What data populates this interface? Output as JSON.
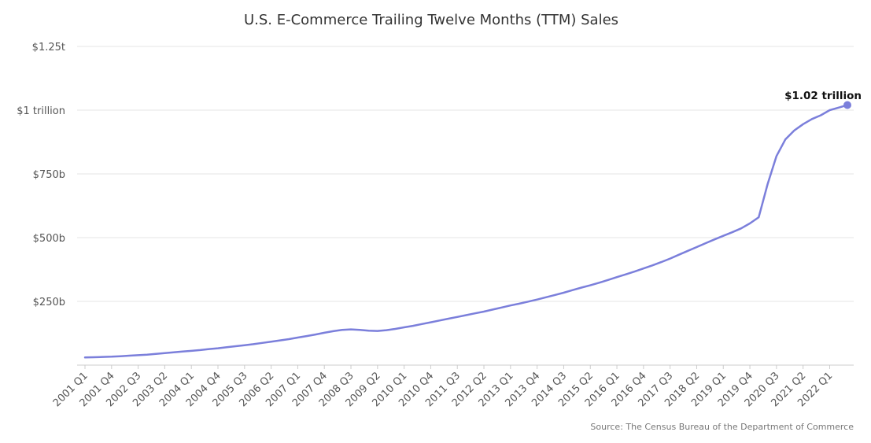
{
  "chart_data": {
    "type": "line",
    "title": "U.S. E-Commerce Trailing Twelve Months (TTM) Sales",
    "source": "Source: The Census Bureau of the Department of Commerce",
    "ylim": [
      0,
      1250
    ],
    "yunit": "billions USD",
    "y_ticks": [
      {
        "value": 250,
        "label": "$250b"
      },
      {
        "value": 500,
        "label": "$500b"
      },
      {
        "value": 750,
        "label": "$750b"
      },
      {
        "value": 1000,
        "label": "$1 trillion"
      },
      {
        "value": 1250,
        "label": "$1.25t"
      }
    ],
    "x_tick_labels": [
      "2001 Q1",
      "2001 Q4",
      "2002 Q3",
      "2003 Q2",
      "2004 Q1",
      "2004 Q4",
      "2005 Q3",
      "2006 Q2",
      "2007 Q1",
      "2007 Q4",
      "2008 Q3",
      "2009 Q2",
      "2010 Q1",
      "2010 Q4",
      "2011 Q3",
      "2012 Q2",
      "2013 Q1",
      "2013 Q4",
      "2014 Q3",
      "2015 Q2",
      "2016 Q1",
      "2016 Q4",
      "2017 Q3",
      "2018 Q2",
      "2019 Q1",
      "2019 Q4",
      "2020 Q3",
      "2021 Q2",
      "2022 Q1"
    ],
    "grid": true,
    "color": "#7b7fdb",
    "annotation": {
      "label": "$1.02 trillion",
      "value": 1020
    },
    "series": [
      {
        "x": [
          "2001 Q1",
          "2001 Q2",
          "2001 Q3",
          "2001 Q4",
          "2002 Q1",
          "2002 Q2",
          "2002 Q3",
          "2002 Q4",
          "2003 Q1",
          "2003 Q2",
          "2003 Q3",
          "2003 Q4",
          "2004 Q1",
          "2004 Q2",
          "2004 Q3",
          "2004 Q4",
          "2005 Q1",
          "2005 Q2",
          "2005 Q3",
          "2005 Q4",
          "2006 Q1",
          "2006 Q2",
          "2006 Q3",
          "2006 Q4",
          "2007 Q1",
          "2007 Q2",
          "2007 Q3",
          "2007 Q4",
          "2008 Q1",
          "2008 Q2",
          "2008 Q3",
          "2008 Q4",
          "2009 Q1",
          "2009 Q2",
          "2009 Q3",
          "2009 Q4",
          "2010 Q1",
          "2010 Q2",
          "2010 Q3",
          "2010 Q4",
          "2011 Q1",
          "2011 Q2",
          "2011 Q3",
          "2011 Q4",
          "2012 Q1",
          "2012 Q2",
          "2012 Q3",
          "2012 Q4",
          "2013 Q1",
          "2013 Q2",
          "2013 Q3",
          "2013 Q4",
          "2014 Q1",
          "2014 Q2",
          "2014 Q3",
          "2014 Q4",
          "2015 Q1",
          "2015 Q2",
          "2015 Q3",
          "2015 Q4",
          "2016 Q1",
          "2016 Q2",
          "2016 Q3",
          "2016 Q4",
          "2017 Q1",
          "2017 Q2",
          "2017 Q3",
          "2017 Q4",
          "2018 Q1",
          "2018 Q2",
          "2018 Q3",
          "2018 Q4",
          "2019 Q1",
          "2019 Q2",
          "2019 Q3",
          "2019 Q4",
          "2020 Q1",
          "2020 Q2",
          "2020 Q3",
          "2020 Q4",
          "2021 Q1",
          "2021 Q2",
          "2021 Q3",
          "2021 Q4",
          "2022 Q1",
          "2022 Q2",
          "2022 Q3"
        ],
        "values": [
          30,
          31,
          32,
          33,
          35,
          37,
          39,
          41,
          44,
          47,
          50,
          53,
          56,
          59,
          63,
          66,
          70,
          74,
          78,
          82,
          87,
          92,
          97,
          102,
          108,
          114,
          120,
          127,
          133,
          138,
          140,
          138,
          135,
          134,
          137,
          142,
          148,
          154,
          161,
          168,
          175,
          182,
          189,
          196,
          203,
          210,
          218,
          226,
          234,
          241,
          249,
          257,
          266,
          275,
          284,
          294,
          304,
          313,
          323,
          334,
          345,
          356,
          367,
          379,
          391,
          404,
          418,
          433,
          448,
          463,
          478,
          493,
          507,
          521,
          536,
          556,
          580,
          710,
          820,
          885,
          920,
          945,
          965,
          980,
          1000,
          1010,
          1020
        ]
      }
    ]
  }
}
